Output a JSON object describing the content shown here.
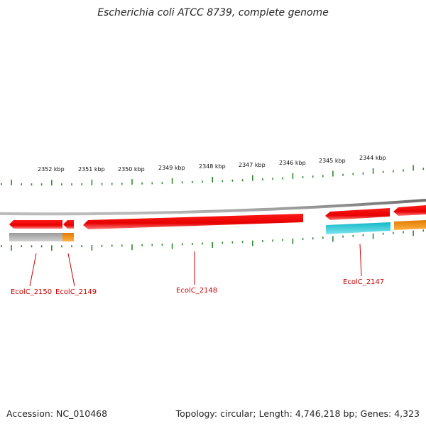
{
  "title": "Escherichia coli ATCC 8739, complete genome",
  "footer": {
    "accession": "Accession: NC_010468",
    "summary": "Topology: circular; Length: 4,746,218 bp; Genes: 4,323"
  },
  "scale_labels": [
    "2352 kbp",
    "2351 kbp",
    "2350 kbp",
    "2349 kbp",
    "2348 kbp",
    "2347 kbp",
    "2346 kbp",
    "2345 kbp",
    "2344 kbp"
  ],
  "gene_labels": [
    "EcolC_2150",
    "EcolC_2149",
    "EcolC_2148",
    "EcolC_2147"
  ],
  "colors": {
    "backbone": "#8a8a8a",
    "tick": "#2e8b2e",
    "cds": "#ee1111",
    "gene_grey": "#b3b3b3",
    "gene_orange": "#f08c00",
    "gene_cyan": "#19c8d2",
    "label": "#cc0000"
  }
}
